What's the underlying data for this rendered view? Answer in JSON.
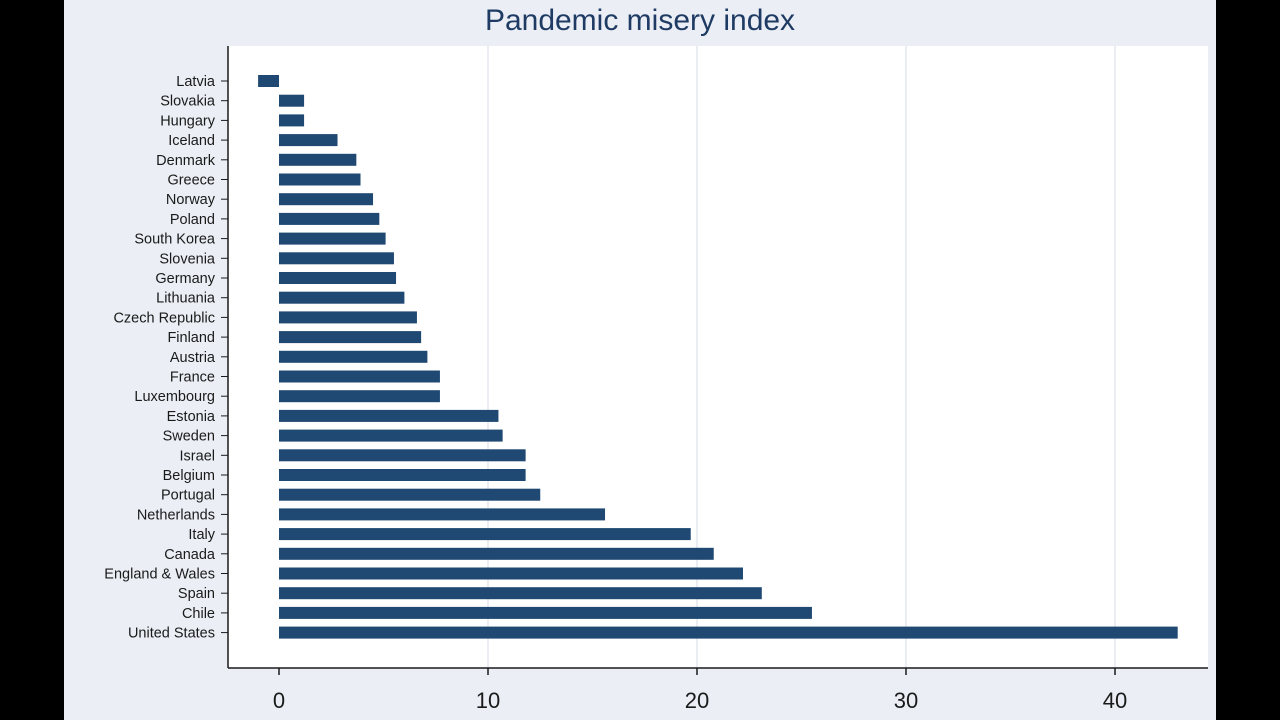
{
  "chart_data": {
    "type": "bar",
    "orientation": "horizontal",
    "title": "Pandemic misery index",
    "xlabel": "",
    "ylabel": "",
    "xlim": [
      -2.5,
      44
    ],
    "xticks": [
      "0",
      "10",
      "20",
      "30",
      "40"
    ],
    "grid": true,
    "legend": "none",
    "bar_color": "#1f4872",
    "categories": [
      "Latvia",
      "Slovakia",
      "Hungary",
      "Iceland",
      "Denmark",
      "Greece",
      "Norway",
      "Poland",
      "South Korea",
      "Slovenia",
      "Germany",
      "Lithuania",
      "Czech Republic",
      "Finland",
      "Austria",
      "France",
      "Luxembourg",
      "Estonia",
      "Sweden",
      "Israel",
      "Belgium",
      "Portugal",
      "Netherlands",
      "Italy",
      "Canada",
      "England & Wales",
      "Spain",
      "Chile",
      "United States"
    ],
    "values": [
      -1.0,
      1.2,
      1.2,
      2.8,
      3.7,
      3.9,
      4.5,
      4.8,
      5.1,
      5.5,
      5.6,
      6.0,
      6.6,
      6.8,
      7.1,
      7.7,
      7.7,
      10.5,
      10.7,
      11.8,
      11.8,
      12.5,
      15.6,
      19.7,
      20.8,
      22.2,
      23.1,
      25.5,
      43.0
    ]
  }
}
